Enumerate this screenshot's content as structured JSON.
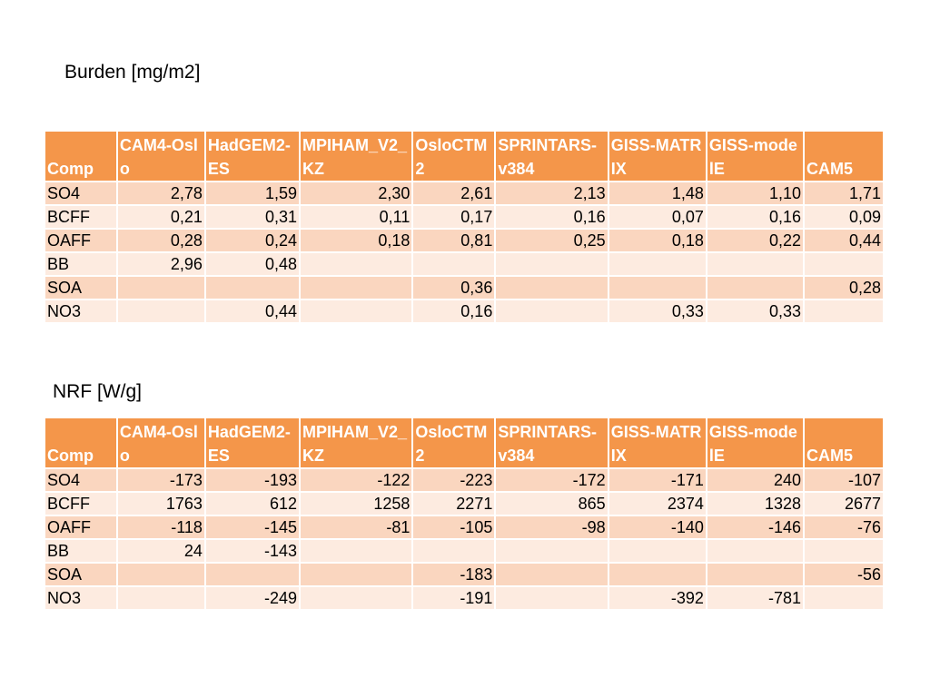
{
  "sections": [
    {
      "title": "Burden [mg/m2]",
      "headers": [
        "Comp",
        "CAM4-Oslo",
        "HadGEM2-ES",
        "MPIHAM_V2_KZ",
        "OsloCTM2",
        "SPRINTARS-v384",
        "GISS-MATRIX",
        "GISS-modelE",
        "CAM5"
      ],
      "rows": [
        [
          "SO4",
          "2,78",
          "1,59",
          "2,30",
          "2,61",
          "2,13",
          "1,48",
          "1,10",
          "1,71"
        ],
        [
          "BCFF",
          "0,21",
          "0,31",
          "0,11",
          "0,17",
          "0,16",
          "0,07",
          "0,16",
          "0,09"
        ],
        [
          "OAFF",
          "0,28",
          "0,24",
          "0,18",
          "0,81",
          "0,25",
          "0,18",
          "0,22",
          "0,44"
        ],
        [
          "BB",
          "2,96",
          "0,48",
          "",
          "",
          "",
          "",
          "",
          ""
        ],
        [
          "SOA",
          "",
          "",
          "",
          "0,36",
          "",
          "",
          "",
          "0,28"
        ],
        [
          "NO3",
          "",
          "0,44",
          "",
          "0,16",
          "",
          "0,33",
          "0,33",
          ""
        ]
      ]
    },
    {
      "title": "NRF [W/g]",
      "headers": [
        "Comp",
        "CAM4-Oslo",
        "HadGEM2-ES",
        "MPIHAM_V2_KZ",
        "OsloCTM2",
        "SPRINTARS-v384",
        "GISS-MATRIX",
        "GISS-modelE",
        "CAM5"
      ],
      "rows": [
        [
          "SO4",
          "-173",
          "-193",
          "-122",
          "-223",
          "-172",
          "-171",
          "240",
          "-107"
        ],
        [
          "BCFF",
          "1763",
          "612",
          "1258",
          "2271",
          "865",
          "2374",
          "1328",
          "2677"
        ],
        [
          "OAFF",
          "-118",
          "-145",
          "-81",
          "-105",
          "-98",
          "-140",
          "-146",
          "-76"
        ],
        [
          "BB",
          "24",
          "-143",
          "",
          "",
          "",
          "",
          "",
          ""
        ],
        [
          "SOA",
          "",
          "",
          "",
          "-183",
          "",
          "",
          "",
          "-56"
        ],
        [
          "NO3",
          "",
          "-249",
          "",
          "-191",
          "",
          "-392",
          "-781",
          ""
        ]
      ]
    }
  ]
}
